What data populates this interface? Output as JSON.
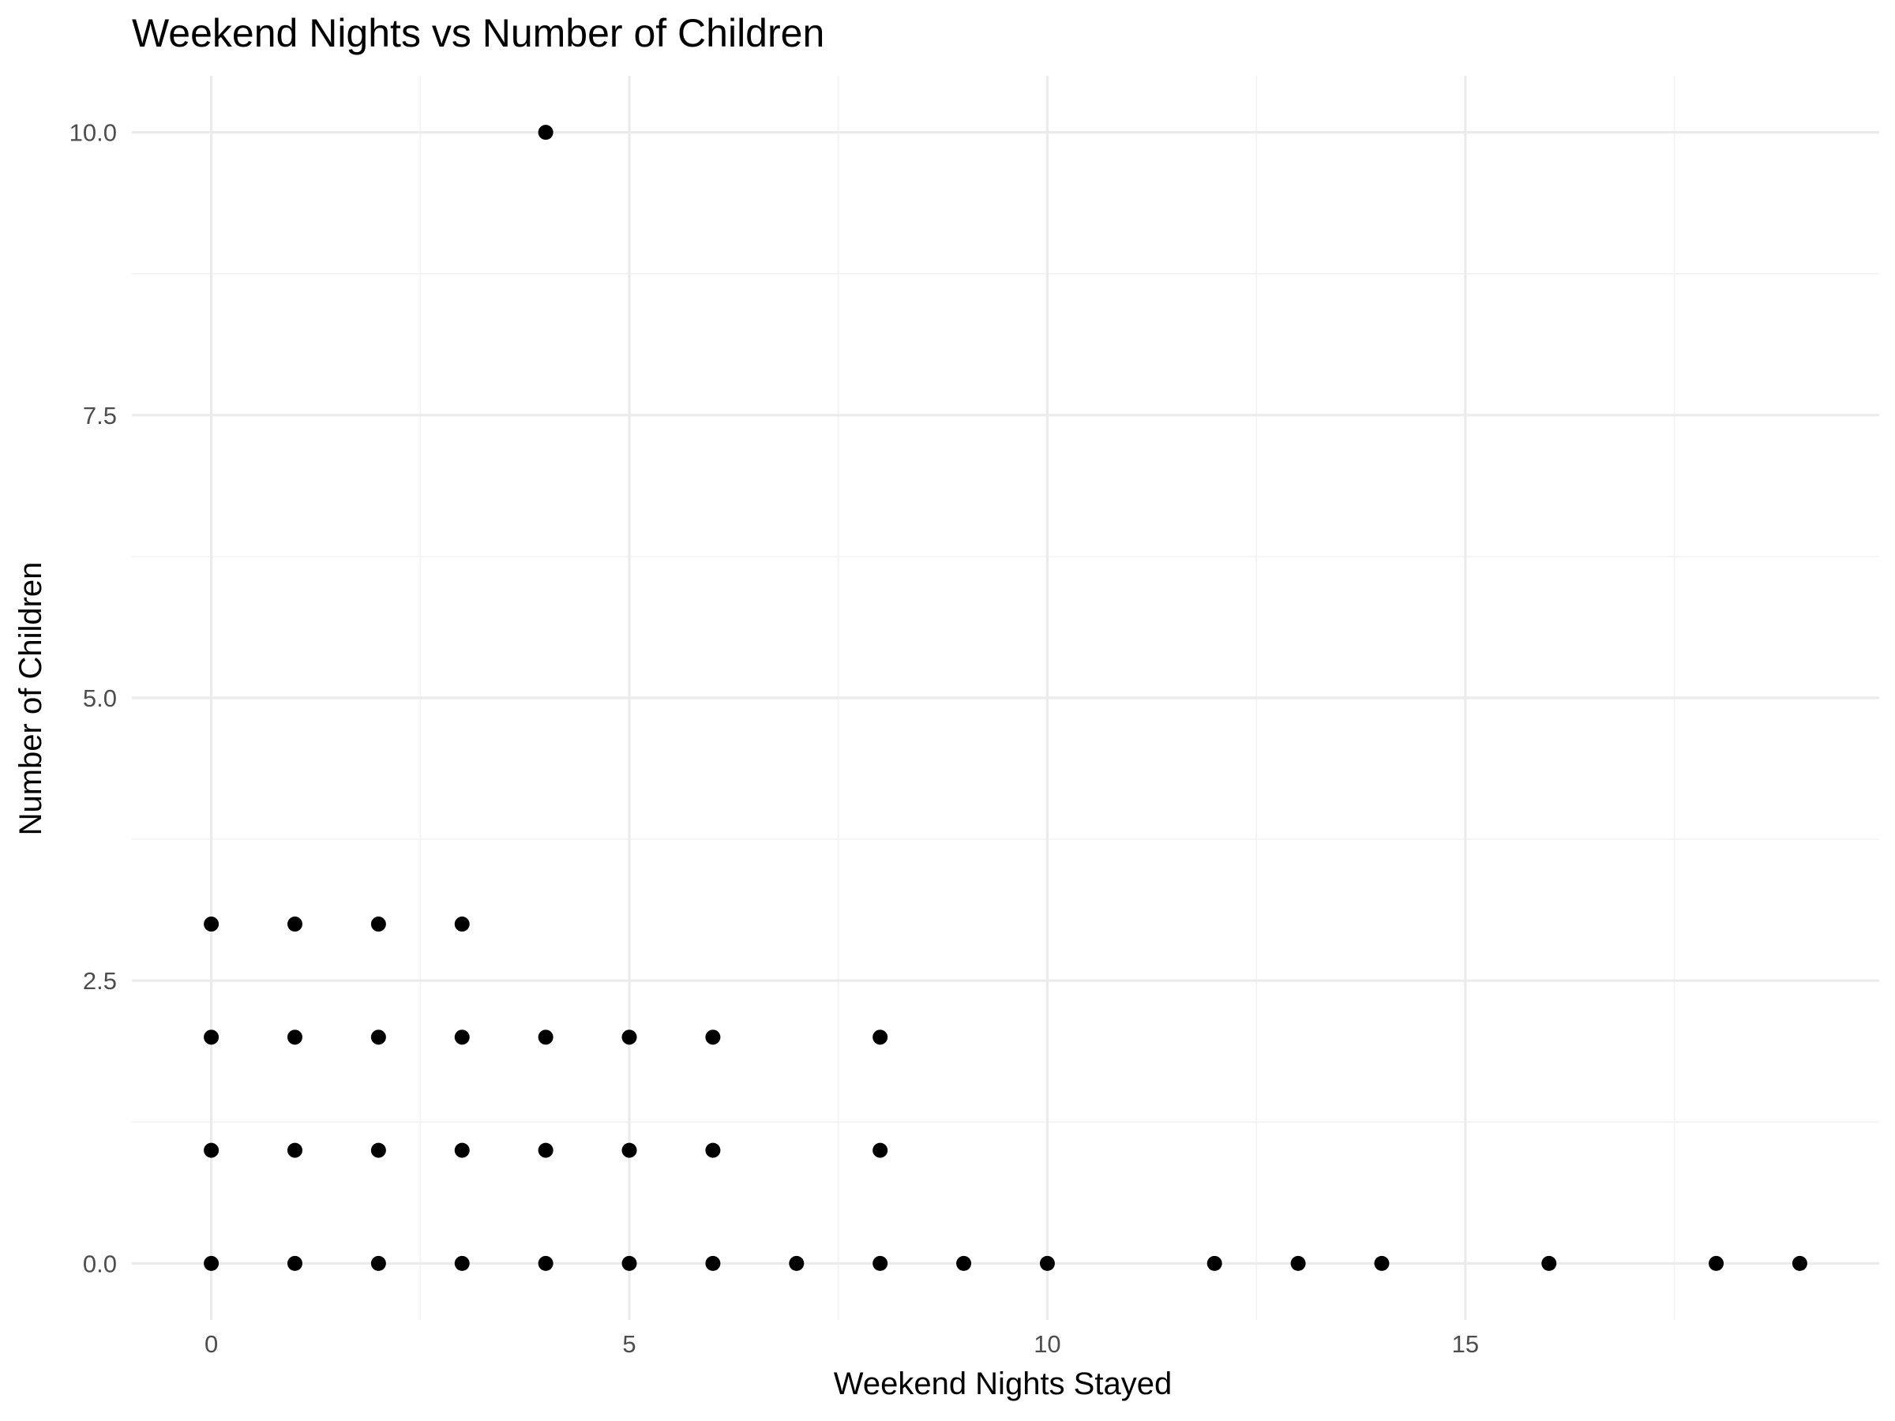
{
  "chart_data": {
    "type": "scatter",
    "title": "Weekend Nights vs Number of Children",
    "xlabel": "Weekend Nights Stayed",
    "ylabel": "Number of Children",
    "xlim": [
      -0.95,
      19.95
    ],
    "ylim": [
      -0.5,
      10.5
    ],
    "x_ticks": [
      0,
      5,
      10,
      15
    ],
    "x_tick_labels": [
      "0",
      "5",
      "10",
      "15"
    ],
    "x_minor_ticks": [
      2.5,
      7.5,
      12.5,
      17.5
    ],
    "y_ticks": [
      0,
      2.5,
      5,
      7.5,
      10
    ],
    "y_tick_labels": [
      "0.0",
      "2.5",
      "5.0",
      "7.5",
      "10.0"
    ],
    "y_minor_ticks": [
      1.25,
      3.75,
      6.25,
      8.75
    ],
    "grid": true,
    "legend": "none",
    "point_color": "#000000",
    "points": [
      [
        0,
        0
      ],
      [
        0,
        1
      ],
      [
        0,
        2
      ],
      [
        0,
        3
      ],
      [
        1,
        0
      ],
      [
        1,
        1
      ],
      [
        1,
        2
      ],
      [
        1,
        3
      ],
      [
        2,
        0
      ],
      [
        2,
        1
      ],
      [
        2,
        2
      ],
      [
        2,
        3
      ],
      [
        3,
        0
      ],
      [
        3,
        1
      ],
      [
        3,
        2
      ],
      [
        3,
        3
      ],
      [
        4,
        0
      ],
      [
        4,
        1
      ],
      [
        4,
        2
      ],
      [
        4,
        10
      ],
      [
        5,
        0
      ],
      [
        5,
        1
      ],
      [
        5,
        2
      ],
      [
        6,
        0
      ],
      [
        6,
        1
      ],
      [
        6,
        2
      ],
      [
        7,
        0
      ],
      [
        8,
        0
      ],
      [
        8,
        1
      ],
      [
        8,
        2
      ],
      [
        9,
        0
      ],
      [
        10,
        0
      ],
      [
        12,
        0
      ],
      [
        13,
        0
      ],
      [
        14,
        0
      ],
      [
        16,
        0
      ],
      [
        18,
        0
      ],
      [
        19,
        0
      ]
    ]
  }
}
